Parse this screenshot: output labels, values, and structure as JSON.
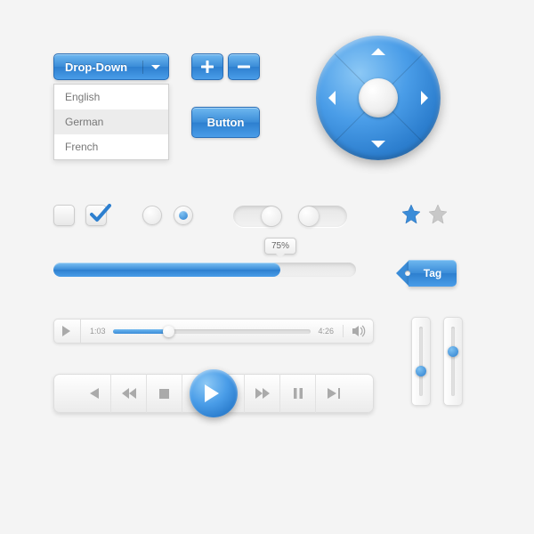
{
  "colors": {
    "primary_gradient_top": "#6fb8f0",
    "primary_gradient_mid": "#3a8cd8",
    "primary_gradient_bot": "#2d7fcf",
    "primary_dark": "#1f6bb8",
    "background": "#f4f4f4",
    "grey_light": "#eeeeee",
    "grey_border": "#dddddd",
    "grey_inactive": "#bfbfbf",
    "text_white": "#ffffff",
    "text_muted": "#888888"
  },
  "dropdown": {
    "label": "Drop-Down",
    "options": [
      "English",
      "German",
      "French"
    ],
    "selected_index": 1
  },
  "plus_minus": {
    "plus": "+",
    "minus": "−"
  },
  "button": {
    "label": "Button"
  },
  "dpad": {
    "directions": [
      "up",
      "right",
      "down",
      "left"
    ]
  },
  "checkboxes": [
    {
      "checked": false
    },
    {
      "checked": true
    }
  ],
  "radios": [
    {
      "selected": false
    },
    {
      "selected": true
    }
  ],
  "toggles": [
    {
      "on": true
    },
    {
      "on": false
    }
  ],
  "stars": [
    {
      "filled": true,
      "color": "#3a8cd8"
    },
    {
      "filled": true,
      "color": "#bfbfbf"
    }
  ],
  "progress": {
    "percent": 75,
    "label": "75%"
  },
  "tag": {
    "label": "Tag"
  },
  "player1": {
    "elapsed": "1:03",
    "total": "4:26",
    "position_pct": 28
  },
  "vertical_sliders": [
    {
      "value_pct": 45
    },
    {
      "value_pct": 72
    }
  ],
  "player2": {
    "buttons": [
      "prev",
      "rewind",
      "stop",
      "play",
      "forward",
      "pause",
      "next"
    ]
  }
}
